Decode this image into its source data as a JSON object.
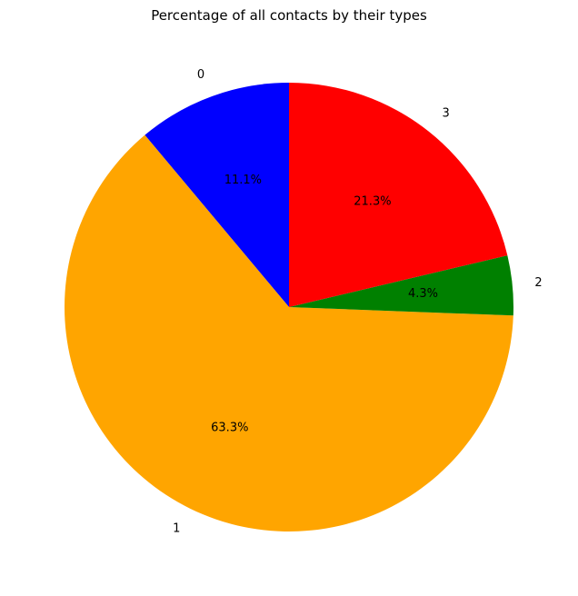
{
  "chart_data": {
    "type": "pie",
    "title": "Percentage of all contacts by their types",
    "categories": [
      "0",
      "1",
      "2",
      "3"
    ],
    "values": [
      11.1,
      63.3,
      4.3,
      21.3
    ],
    "value_labels": [
      "11.1%",
      "63.3%",
      "4.3%",
      "21.3%"
    ],
    "colors": [
      "#0000ff",
      "#ffa500",
      "#008000",
      "#ff0000"
    ],
    "start_angle_deg": 90,
    "direction": "counterclockwise",
    "legend": "none"
  }
}
